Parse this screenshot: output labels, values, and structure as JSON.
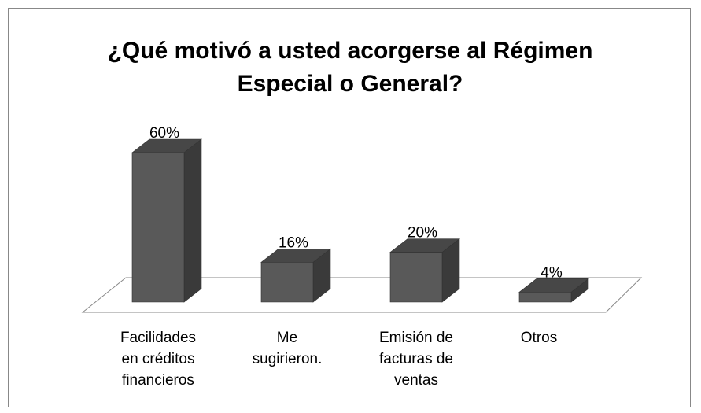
{
  "chart_data": {
    "type": "bar3d",
    "title": "¿Qué motivó a usted acorgerse al Régimen\nEspecial o General?",
    "categories": [
      "Facilidades\nen  créditos\nfinancieros",
      "Me\nsugirieron.",
      "Emisión de\nfacturas de\nventas",
      "Otros"
    ],
    "values": [
      60,
      16,
      20,
      4
    ],
    "value_labels": [
      "60%",
      "16%",
      "20%",
      "4%"
    ],
    "color": "#595959"
  }
}
